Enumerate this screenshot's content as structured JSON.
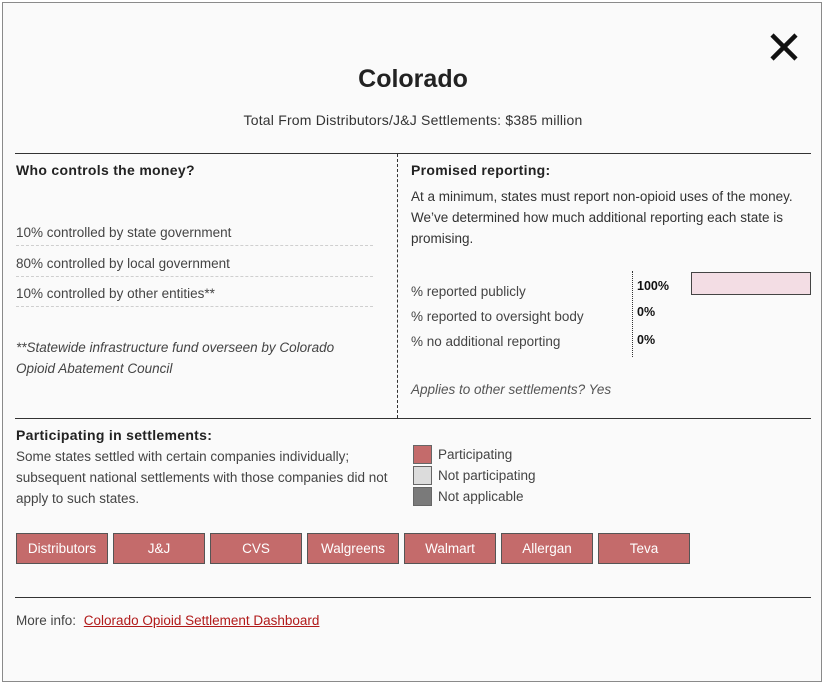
{
  "state": {
    "name": "Colorado",
    "total_label": "Total From Distributors/J&J Settlements: $385 million"
  },
  "control": {
    "heading": "Who controls the money?",
    "rows": [
      "10% controlled by state government",
      "80% controlled by local government",
      "10% controlled by other entities**"
    ],
    "footnote": "**Statewide infrastructure fund overseen by Colorado Opioid Abatement Council"
  },
  "reporting": {
    "heading": "Promised reporting:",
    "description": "At a minimum, states must report non-opioid uses of the money. We’ve determined how much additional reporting each state is promising.",
    "items": [
      {
        "label": "% reported publicly",
        "value": "100%",
        "fraction": 1.0
      },
      {
        "label": "% reported to oversight body",
        "value": "0%",
        "fraction": 0.0
      },
      {
        "label": "% no additional reporting",
        "value": "0%",
        "fraction": 0.0
      }
    ],
    "bar_color": "#f3dde4",
    "applies": "Applies to other settlements? Yes"
  },
  "participation": {
    "heading": "Participating in settlements:",
    "description": "Some states settled with certain companies individually; subsequent national settlements with those companies did not apply to such states.",
    "legend": [
      {
        "label": "Participating",
        "color": "#c46b6b"
      },
      {
        "label": "Not participating",
        "color": "#dcdcdc"
      },
      {
        "label": "Not applicable",
        "color": "#7a7a7a"
      }
    ],
    "companies": [
      "Distributors",
      "J&J",
      "CVS",
      "Walgreens",
      "Walmart",
      "Allergan",
      "Teva"
    ]
  },
  "more_info": {
    "label": "More info:",
    "link_text": "Colorado Opioid Settlement Dashboard",
    "link_color": "#b11a1a"
  },
  "icons": {
    "close": "close-icon"
  }
}
